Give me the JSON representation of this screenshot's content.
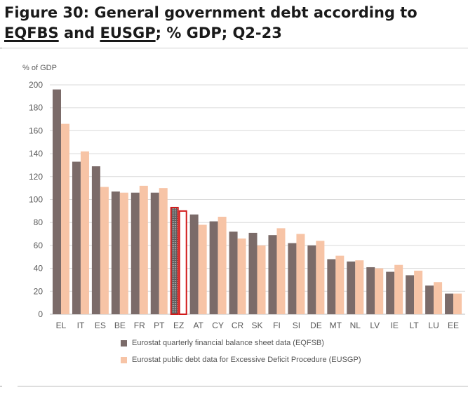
{
  "figure": {
    "title_prefix": "Figure 30: General government debt according to",
    "title_u1": "EQFBS",
    "title_and": " and ",
    "title_u2": "EUSGP",
    "title_suffix": "; % GDP; Q2-23"
  },
  "colors": {
    "eqfsb": "#7b6b69",
    "eusgp": "#f7c4a6",
    "highlight_border": "#d11a1a",
    "grid": "#d9d9d9",
    "axis_text": "#595959"
  },
  "chart_data": {
    "type": "bar",
    "title": "Figure 30: General government debt according to EQFBS and EUSGP; % GDP; Q2-23",
    "ylabel": "% of GDP",
    "xlabel": "",
    "ylim": [
      0,
      200
    ],
    "yticks": [
      0,
      20,
      40,
      60,
      80,
      100,
      120,
      140,
      160,
      180,
      200
    ],
    "grid": true,
    "legend_position": "bottom",
    "highlight_category": "EZ",
    "categories": [
      "EL",
      "IT",
      "ES",
      "BE",
      "FR",
      "PT",
      "EZ",
      "AT",
      "CY",
      "CR",
      "SK",
      "FI",
      "SI",
      "DE",
      "MT",
      "NL",
      "LV",
      "IE",
      "LT",
      "LU",
      "EE"
    ],
    "series": [
      {
        "name": "Eurostat quarterly financial balance sheet data (EQFSB)",
        "values": [
          196,
          133,
          129,
          107,
          106,
          106,
          93,
          87,
          81,
          72,
          71,
          69,
          62,
          60,
          48,
          46,
          41,
          37,
          34,
          25,
          18
        ]
      },
      {
        "name": "Eurostat public debt data for Excessive Deficit Procedure (EUSGP)",
        "values": [
          166,
          142,
          111,
          106,
          112,
          110,
          90,
          78,
          85,
          66,
          60,
          75,
          70,
          64,
          51,
          47,
          40,
          43,
          38,
          28,
          18
        ]
      }
    ]
  }
}
